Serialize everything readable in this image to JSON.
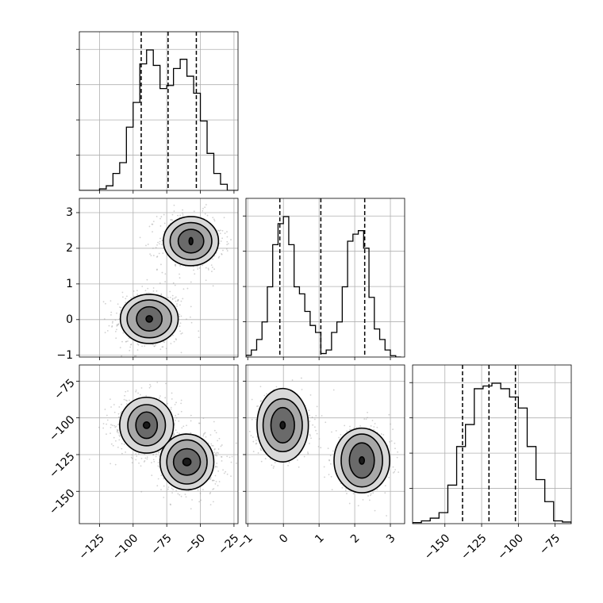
{
  "chart_data": {
    "type": "corner",
    "parameters": 3,
    "histograms": [
      {
        "param": 0,
        "xlim": [
          -140,
          -22
        ],
        "bin_edges": [
          -140,
          -135,
          -130,
          -125,
          -120,
          -115,
          -110,
          -105,
          -100,
          -95,
          -90,
          -85,
          -80,
          -75,
          -70,
          -65,
          -60,
          -55,
          -50,
          -45,
          -40,
          -35,
          -30,
          -25,
          -22
        ],
        "counts": [
          0.0,
          0.0,
          0.0,
          1.0,
          3.0,
          11.0,
          18.0,
          41.0,
          57.0,
          82.0,
          91.0,
          81.0,
          66.0,
          68.0,
          79.0,
          85.0,
          74.0,
          63.0,
          45.0,
          24.0,
          11.0,
          4.0,
          0.0,
          0.0
        ],
        "quantiles": [
          -94,
          -74,
          -53
        ],
        "ticks": [
          -125,
          -100,
          -75,
          -50,
          -25
        ],
        "grid": true
      },
      {
        "param": 1,
        "xlim": [
          -1.05,
          3.4
        ],
        "bin_edges": [
          -1.05,
          -0.9,
          -0.75,
          -0.6,
          -0.45,
          -0.3,
          -0.15,
          0.0,
          0.15,
          0.3,
          0.45,
          0.6,
          0.75,
          0.9,
          1.05,
          1.2,
          1.35,
          1.5,
          1.65,
          1.8,
          1.95,
          2.1,
          2.25,
          2.4,
          2.55,
          2.7,
          2.85,
          3.0,
          3.15,
          3.3
        ],
        "counts": [
          0.5,
          2.0,
          5.0,
          10.0,
          20.0,
          32.0,
          38.0,
          40.0,
          32.0,
          20.0,
          18.0,
          13.0,
          9.0,
          7.0,
          1.0,
          2.0,
          7.0,
          10.0,
          20.0,
          33.0,
          35.0,
          36.0,
          31.0,
          17.0,
          8.0,
          5.0,
          2.0,
          0.4,
          0.0
        ],
        "quantiles": [
          -0.1,
          1.05,
          2.28
        ],
        "ticks": [
          -1,
          0,
          1,
          2,
          3
        ],
        "grid": true
      },
      {
        "param": 2,
        "xlim": [
          -172,
          -64
        ],
        "bin_edges": [
          -172,
          -166,
          -160,
          -154,
          -148,
          -142,
          -136,
          -130,
          -124,
          -118,
          -112,
          -106,
          -100,
          -94,
          -88,
          -82,
          -76,
          -70,
          -64
        ],
        "counts": [
          0.4,
          1.0,
          2.0,
          4.0,
          14.0,
          28.0,
          36.0,
          49.0,
          50.0,
          51.0,
          49.0,
          46.0,
          42.0,
          28.0,
          16.0,
          8.0,
          1.0,
          0.6
        ],
        "quantiles": [
          -138,
          -120,
          -102
        ],
        "ticks": [
          -150,
          -125,
          -100,
          -75
        ],
        "grid": true
      }
    ],
    "scatter_panels": [
      {
        "x_param": 0,
        "y_param": 1,
        "xlim": [
          -140,
          -22
        ],
        "ylim": [
          -1.05,
          3.4
        ],
        "clusters": [
          {
            "center": [
              -88,
              0.0
            ],
            "spread": [
              12,
              0.4
            ],
            "n": 500
          },
          {
            "center": [
              -57,
              2.2
            ],
            "spread": [
              11,
              0.38
            ],
            "n": 500
          }
        ],
        "contours": [
          {
            "cx": -88,
            "cy": 0.02,
            "rx": [
              2.4,
              9.5,
              16.5,
              21.5
            ],
            "ry": [
              0.09,
              0.34,
              0.53,
              0.69
            ]
          },
          {
            "cx": -57,
            "cy": 2.2,
            "rx": [
              1.4,
              9.5,
              15.5,
              20.5
            ],
            "ry": [
              0.1,
              0.33,
              0.52,
              0.69
            ]
          }
        ]
      },
      {
        "x_param": 0,
        "y_param": 2,
        "xlim": [
          -140,
          -22
        ],
        "ylim": [
          -172,
          -64
        ],
        "clusters": [
          {
            "center": [
              -90,
              -105
            ],
            "spread": [
              12,
              10
            ],
            "n": 500
          },
          {
            "center": [
              -58,
              -130
            ],
            "spread": [
              11,
              10
            ],
            "n": 500
          }
        ],
        "contours": [
          {
            "cx": -90,
            "cy": -105,
            "rx": [
              2.4,
              8,
              14,
              20
            ],
            "ry": [
              2.2,
              9,
              14,
              19
            ]
          },
          {
            "cx": -60,
            "cy": -130,
            "rx": [
              3,
              10,
              15,
              20
            ],
            "ry": [
              2.5,
              9,
              15,
              19
            ]
          }
        ]
      },
      {
        "x_param": 1,
        "y_param": 2,
        "xlim": [
          -1.05,
          3.4
        ],
        "ylim": [
          -172,
          -64
        ],
        "clusters": [
          {
            "center": [
              -0.02,
              -105
            ],
            "spread": [
              0.36,
              10
            ],
            "n": 500
          },
          {
            "center": [
              2.2,
              -129
            ],
            "spread": [
              0.38,
              10
            ],
            "n": 500
          }
        ],
        "contours": [
          {
            "cx": -0.02,
            "cy": -105,
            "rx": [
              0.07,
              0.33,
              0.55,
              0.72
            ],
            "ry": [
              2.5,
              12,
              18,
              25
            ]
          },
          {
            "cx": 2.2,
            "cy": -129,
            "rx": [
              0.07,
              0.35,
              0.58,
              0.78
            ],
            "ry": [
              2.5,
              12,
              18,
              22
            ]
          }
        ]
      }
    ]
  }
}
